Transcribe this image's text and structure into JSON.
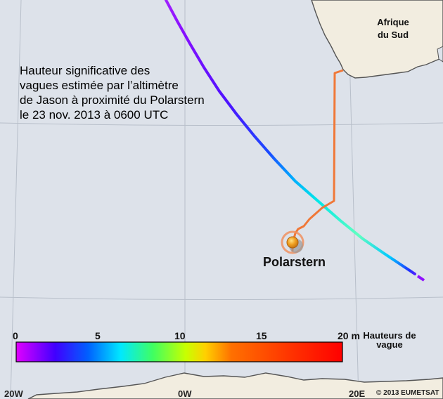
{
  "map": {
    "title_lines": [
      "Hauteur significative des",
      "vagues estimée par l’altimètre",
      "de Jason à proximité du Polarstern",
      "le 23 nov. 2013 à 0600 UTC"
    ],
    "region_label_lines": [
      "Afrique",
      "du Sud"
    ],
    "vessel_label": "Polarstern",
    "longitude_labels": [
      "20W",
      "0W",
      "20E"
    ],
    "copyright": "© 2013 EUMETSAT"
  },
  "legend": {
    "ticks": [
      "0",
      "5",
      "10",
      "15",
      "20 m"
    ],
    "title_lines": [
      "Hauteurs de",
      "vague"
    ],
    "range_m": [
      0,
      20
    ],
    "colors": [
      "#e000ff",
      "#4000ff",
      "#0060ff",
      "#00e8ff",
      "#40ff60",
      "#c8ff00",
      "#ffd000",
      "#ff7000",
      "#ff3000",
      "#ff0000"
    ]
  },
  "colors": {
    "ocean": "#dde2ea",
    "land": "#f2ede0",
    "coast": "#555555",
    "grid": "#b8bfca",
    "ship_track": "#f07838",
    "vessel": "#f0a020"
  }
}
